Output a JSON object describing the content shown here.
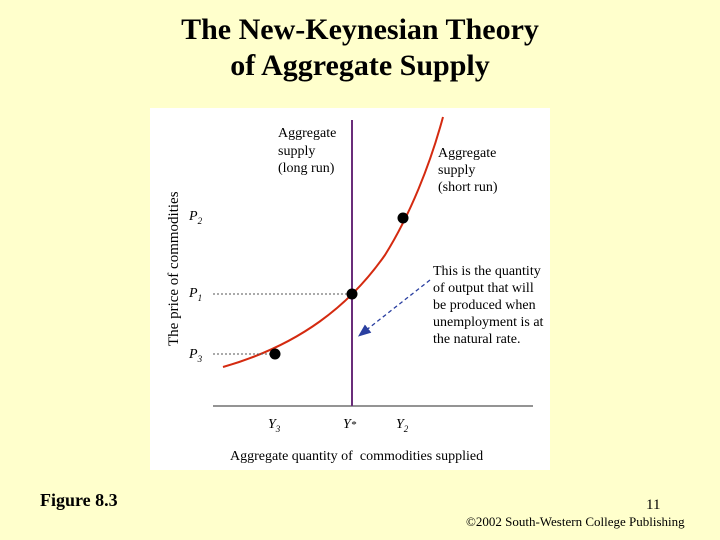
{
  "slide": {
    "title_line1": "The New-Keynesian Theory",
    "title_line2": "of Aggregate Supply",
    "figure_label": "Figure 8.3",
    "page_number": "11",
    "copyright": "©2002 South-Western College Publishing"
  },
  "diagram": {
    "y_axis_label": "The price of commodities",
    "x_axis_label": "Aggregate quantity of  commodities supplied",
    "long_run_label": [
      "Aggregate",
      "supply",
      "(long run)"
    ],
    "short_run_label": [
      "Aggregate",
      "supply",
      "(short run)"
    ],
    "annotation": [
      "This is the quantity",
      "of output that will",
      "be produced when",
      "unemployment is at",
      "the natural rate."
    ],
    "price_ticks": [
      {
        "base": "P",
        "sub": "2"
      },
      {
        "base": "P",
        "sub": "1"
      },
      {
        "base": "P",
        "sub": "3"
      }
    ],
    "quantity_ticks": [
      {
        "base": "Y",
        "sub": "3"
      },
      {
        "base": "Y",
        "sub": "*"
      },
      {
        "base": "Y",
        "sub": "2"
      }
    ],
    "colors": {
      "curve": "#d42a10",
      "vertical_line": "#6a2d7a",
      "arrow": "#2a3fa0",
      "dotted": "#555555"
    }
  }
}
